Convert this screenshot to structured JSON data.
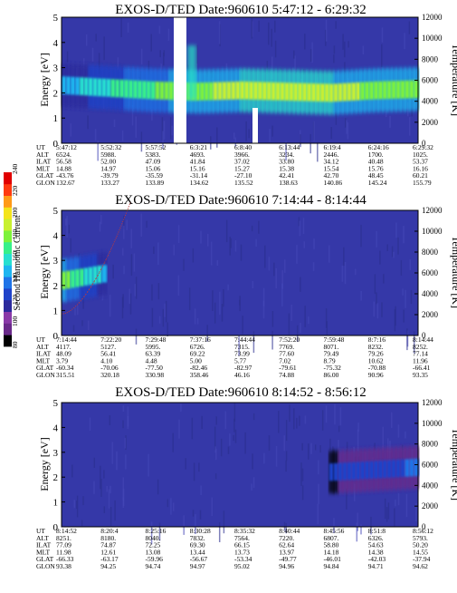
{
  "colorbar": {
    "label": "Second Harmonic Current",
    "ticks": [
      "80",
      "100",
      "120",
      "140",
      "160",
      "180",
      "200",
      "220",
      "240"
    ],
    "colors": [
      "#000000",
      "#6a2a8a",
      "#8a3aa8",
      "#2c2a9c",
      "#1f43c9",
      "#1f74e8",
      "#1eb5f0",
      "#27e0d0",
      "#37f08a",
      "#7df23c",
      "#c8f030",
      "#f4e41c",
      "#ff9a18",
      "#ff3a10",
      "#e00000"
    ]
  },
  "panels": [
    {
      "title": "EXOS-D/TED   Date:960610   5:47:12 - 6:29:32",
      "ylabel_left": "Energy [eV]",
      "ylabel_right": "Temperature [K]",
      "y_ticks": [
        "0",
        "1",
        "2",
        "3",
        "4",
        "5"
      ],
      "t_ticks": [
        "0",
        "2000",
        "4000",
        "6000",
        "8000",
        "10000",
        "12000"
      ],
      "table": {
        "labels": [
          "UT",
          "ALT",
          "ILAT",
          "MLT",
          "GLAT",
          "GLON"
        ],
        "columns": [
          [
            "5:47:12",
            "6524.",
            "56.58",
            "14.88",
            "-43.76",
            "132.67"
          ],
          [
            "5:52:32",
            "5988.",
            "52.00",
            "14.97",
            "-39.79",
            "133.27"
          ],
          [
            "5:57:52",
            "5383.",
            "47.09",
            "15.06",
            "-35.59",
            "133.89"
          ],
          [
            "6:3:21",
            "4693.",
            "41.84",
            "15.16",
            "-31.14",
            "134.62"
          ],
          [
            "6:8:40",
            "3966.",
            "37.02",
            "15.27",
            "-27.10",
            "135.52"
          ],
          [
            "6:13:44",
            "3234.",
            "33.80",
            "15.38",
            "42.41",
            "138.63"
          ],
          [
            "6:19:4",
            "2446.",
            "34.12",
            "15.54",
            "42.70",
            "140.86"
          ],
          [
            "6:24:16",
            "1700.",
            "40.48",
            "15.76",
            "48.45",
            "145.24"
          ],
          [
            "6:29:32",
            "1025.",
            "53.37",
            "16.16",
            "60.21",
            "155.79"
          ]
        ]
      }
    },
    {
      "title": "EXOS-D/TED   Date:960610   7:14:44 - 8:14:44",
      "ylabel_left": "Energy [eV]",
      "ylabel_right": "Temperature [K]",
      "y_ticks": [
        "0",
        "1",
        "2",
        "3",
        "4",
        "5"
      ],
      "t_ticks": [
        "0",
        "2000",
        "4000",
        "6000",
        "8000",
        "10000",
        "12000"
      ],
      "table": {
        "labels": [
          "UT",
          "ALT",
          "ILAT",
          "MLT",
          "GLAT",
          "GLON"
        ],
        "columns": [
          [
            "7:14:44",
            "4117.",
            "48.09",
            "3.79",
            "-60.34",
            "315.51"
          ],
          [
            "7:22:20",
            "5127.",
            "56.41",
            "4.10",
            "-70.06",
            "320.18"
          ],
          [
            "7:29:48",
            "5995.",
            "63.39",
            "4.48",
            "-77.50",
            "330.98"
          ],
          [
            "7:37:16",
            "6726.",
            "69.22",
            "5.00",
            "-82.46",
            "358.46"
          ],
          [
            "7:44:44",
            "7315.",
            "73.99",
            "5.77",
            "-82.97",
            "46.16"
          ],
          [
            "7:52:20",
            "7769.",
            "77.60",
            "7.02",
            "-79.61",
            "74.88"
          ],
          [
            "7:59:48",
            "8071.",
            "79.49",
            "8.79",
            "-75.32",
            "86.00"
          ],
          [
            "8:7:16",
            "8232.",
            "79.26",
            "10.62",
            "-70.88",
            "90.96"
          ],
          [
            "8:14:44",
            "8252.",
            "77.14",
            "11.96",
            "-66.41",
            "93.35"
          ]
        ]
      }
    },
    {
      "title": "EXOS-D/TED   Date:960610   8:14:52 - 8:56:12",
      "ylabel_left": "Energy [eV]",
      "ylabel_right": "Temperature [K]",
      "y_ticks": [
        "0",
        "1",
        "2",
        "3",
        "4",
        "5"
      ],
      "t_ticks": [
        "0",
        "2000",
        "4000",
        "6000",
        "8000",
        "10000",
        "12000"
      ],
      "table": {
        "labels": [
          "UT",
          "ALT",
          "ILAT",
          "MLT",
          "GLAT",
          "GLON"
        ],
        "columns": [
          [
            "8:14:52",
            "8251.",
            "77.09",
            "11.98",
            "-66.33",
            "93.38"
          ],
          [
            "8:20:4",
            "8180.",
            "74.87",
            "12.61",
            "-63.17",
            "94.25"
          ],
          [
            "8:25:16",
            "8040.",
            "72.25",
            "13.08",
            "-59.96",
            "94.74"
          ],
          [
            "8:30:28",
            "7832.",
            "69.30",
            "13.44",
            "-56.67",
            "94.97"
          ],
          [
            "8:35:32",
            "7564.",
            "66.15",
            "13.73",
            "-53.34",
            "95.02"
          ],
          [
            "8:40:44",
            "7220.",
            "62.64",
            "13.97",
            "-49.77",
            "94.96"
          ],
          [
            "8:45:56",
            "6807.",
            "58.80",
            "14.18",
            "-46.01",
            "94.84"
          ],
          [
            "8:51:8",
            "6326.",
            "54.63",
            "14.38",
            "-42.03",
            "94.71"
          ],
          [
            "8:56:12",
            "5793.",
            "50.20",
            "14.55",
            "-37.94",
            "94.62"
          ]
        ]
      }
    }
  ],
  "chart_data": [
    {
      "type": "heatmap",
      "title": "EXOS-D/TED   Date:960610   5:47:12 - 6:29:32",
      "xlabel": "UT",
      "ylabel": "Energy [eV]",
      "y2label": "Temperature [K]",
      "ylim": [
        0,
        5
      ],
      "y2lim": [
        0,
        12000
      ],
      "x": [
        "5:47:12",
        "5:52:32",
        "5:57:52",
        "6:3:21",
        "6:8:40",
        "6:13:44",
        "6:19:4",
        "6:24:16",
        "6:29:32"
      ],
      "band_energy_ev": [
        2.3,
        2.2,
        2.1,
        2.05,
        2.1,
        2.05,
        2.0,
        2.1,
        2.15
      ],
      "band_intensity": [
        150,
        165,
        175,
        185,
        190,
        195,
        190,
        185,
        180
      ],
      "colorbar_label": "Second Harmonic Current",
      "colorbar_range": [
        80,
        240
      ]
    },
    {
      "type": "heatmap",
      "title": "EXOS-D/TED   Date:960610   7:14:44 - 8:14:44",
      "xlabel": "UT",
      "ylabel": "Energy [eV]",
      "y2label": "Temperature [K]",
      "ylim": [
        0,
        5
      ],
      "y2lim": [
        0,
        12000
      ],
      "x": [
        "7:14:44",
        "7:22:20",
        "7:29:48",
        "7:37:16",
        "7:44:44",
        "7:52:20",
        "7:59:48",
        "8:7:16",
        "8:14:44"
      ],
      "band_energy_ev": [
        2.2,
        2.5,
        null,
        null,
        null,
        null,
        null,
        null,
        null
      ],
      "band_intensity": [
        180,
        150,
        null,
        null,
        null,
        null,
        null,
        null,
        null
      ],
      "colorbar_label": "Second Harmonic Current",
      "colorbar_range": [
        80,
        240
      ]
    },
    {
      "type": "heatmap",
      "title": "EXOS-D/TED   Date:960610   8:14:52 - 8:56:12",
      "xlabel": "UT",
      "ylabel": "Energy [eV]",
      "y2label": "Temperature [K]",
      "ylim": [
        0,
        5
      ],
      "y2lim": [
        0,
        12000
      ],
      "x": [
        "8:14:52",
        "8:20:4",
        "8:25:16",
        "8:30:28",
        "8:35:32",
        "8:40:44",
        "8:45:56",
        "8:51:8",
        "8:56:12"
      ],
      "band_energy_ev": [
        null,
        null,
        null,
        null,
        null,
        null,
        2.2,
        2.3,
        2.4
      ],
      "band_intensity": [
        null,
        null,
        null,
        null,
        null,
        null,
        125,
        130,
        135
      ],
      "colorbar_label": "Second Harmonic Current",
      "colorbar_range": [
        80,
        240
      ]
    }
  ]
}
